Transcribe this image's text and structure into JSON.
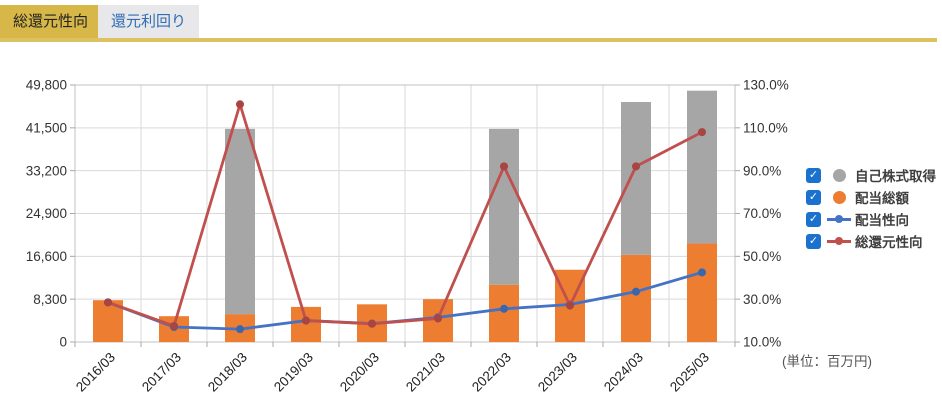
{
  "tabs": [
    {
      "label": "総還元性向",
      "selected": true
    },
    {
      "label": "還元利回り",
      "selected": false
    }
  ],
  "unit_note": "(単位：百万円)",
  "colors": {
    "tab_active_bg": "#d7b747",
    "tab_underline": "#ddc261",
    "tab_inactive_bg": "#e8e7ea",
    "tab_inactive_text": "#2e6db4",
    "bar_gray": "#a6a6a6",
    "bar_orange": "#ed7d31",
    "line_blue": "#4472c4",
    "line_blue_dot": "#3a66ae",
    "line_red": "#c0504d",
    "line_red_dot": "#a84542",
    "checkbox_blue": "#1b72ce",
    "grid": "#d9d9d9",
    "frame": "#c0c0c0",
    "tick": "#a8a8a8",
    "axis_text": "#333333"
  },
  "legend": [
    {
      "label": "自己株式取得",
      "marker": "circle",
      "color": "#a6a6a6",
      "checked": true
    },
    {
      "label": "配当総額",
      "marker": "circle",
      "color": "#ed7d31",
      "checked": true
    },
    {
      "label": "配当性向",
      "marker": "line",
      "color": "#4472c4",
      "checked": true
    },
    {
      "label": "総還元性向",
      "marker": "line",
      "color": "#c0504d",
      "checked": true
    }
  ],
  "chart_data": {
    "type": "bar",
    "subtype": "stacked-bar + line combo",
    "title": "総還元性向",
    "categories": [
      "2016/03",
      "2017/03",
      "2018/03",
      "2019/03",
      "2020/03",
      "2021/03",
      "2022/03",
      "2023/03",
      "2024/03",
      "2025/03"
    ],
    "series": [
      {
        "name": "配当総額",
        "type": "bar",
        "axis": "left",
        "color": "#ed7d31",
        "values": [
          8100,
          5000,
          5400,
          6800,
          7300,
          8300,
          11100,
          14000,
          16900,
          19100
        ]
      },
      {
        "name": "自己株式取得",
        "type": "bar",
        "axis": "left",
        "color": "#a6a6a6",
        "values": [
          0,
          0,
          35900,
          0,
          0,
          0,
          30200,
          0,
          29600,
          29600
        ]
      },
      {
        "name": "配当性向",
        "type": "line",
        "axis": "right",
        "unit": "%",
        "color": "#4472c4",
        "values": [
          28.5,
          17,
          16,
          20,
          18.6,
          21.5,
          25.5,
          27.5,
          33.5,
          42.5
        ]
      },
      {
        "name": "総還元性向",
        "type": "line",
        "axis": "right",
        "unit": "%",
        "color": "#c0504d",
        "values": [
          28.5,
          17.5,
          121,
          20,
          18.5,
          21,
          92,
          27,
          92,
          108
        ]
      }
    ],
    "left_axis": {
      "unit": "百万円",
      "min": 0,
      "max": 49800,
      "tick_values": [
        0,
        8300,
        16600,
        24900,
        33200,
        41500,
        49800
      ],
      "tick_labels": [
        "0",
        "8,300",
        "16,600",
        "24,900",
        "33,200",
        "41,500",
        "49,800"
      ]
    },
    "right_axis": {
      "unit": "%",
      "min": 10,
      "max": 130,
      "tick_values": [
        10,
        30,
        50,
        70,
        90,
        110,
        130
      ],
      "tick_labels": [
        "10.0%",
        "30.0%",
        "50.0%",
        "70.0%",
        "90.0%",
        "110.0%",
        "130.0%"
      ]
    },
    "grid": true,
    "legend_position": "right",
    "x_label_rotation": -45
  }
}
